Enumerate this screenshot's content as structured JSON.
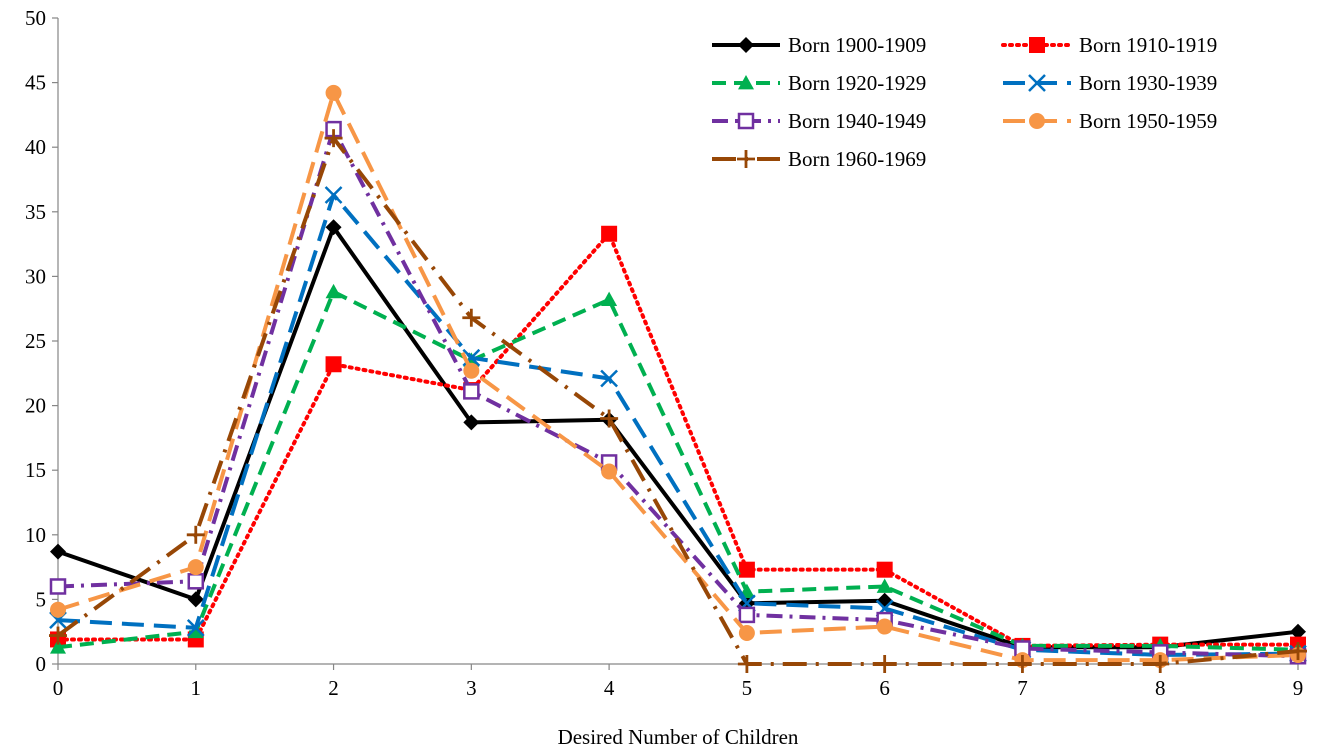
{
  "chart_data": {
    "type": "line",
    "title": "",
    "xlabel": "Desired Number of Children",
    "ylabel": "",
    "x": [
      0,
      1,
      2,
      3,
      4,
      5,
      6,
      7,
      8,
      9
    ],
    "x_tick_labels": [
      "0",
      "1",
      "2",
      "3",
      "4",
      "5",
      "6",
      "7",
      "8",
      "9"
    ],
    "ylim": [
      0,
      50
    ],
    "y_ticks": [
      0,
      5,
      10,
      15,
      20,
      25,
      30,
      35,
      40,
      45,
      50
    ],
    "y_tick_labels": [
      "0",
      "5",
      "10",
      "15",
      "20",
      "25",
      "30",
      "35",
      "40",
      "45",
      "50"
    ],
    "grid": false,
    "legend_position": "top-right",
    "series": [
      {
        "name": "Born 1900-1909",
        "color": "#000000",
        "marker": "diamond",
        "dash": "solid",
        "values": [
          8.7,
          5.0,
          33.8,
          18.7,
          18.9,
          4.7,
          4.9,
          1.3,
          1.3,
          2.5
        ]
      },
      {
        "name": "Born 1910-1919",
        "color": "#ff0000",
        "marker": "square",
        "dash": "dot",
        "values": [
          1.9,
          1.9,
          23.2,
          21.2,
          33.3,
          7.3,
          7.3,
          1.4,
          1.5,
          1.5
        ]
      },
      {
        "name": "Born 1920-1929",
        "color": "#00b050",
        "marker": "triangle",
        "dash": "dash",
        "values": [
          1.3,
          2.5,
          28.8,
          23.5,
          28.2,
          5.6,
          6.0,
          1.4,
          1.4,
          1.1
        ]
      },
      {
        "name": "Born 1930-1939",
        "color": "#0070c0",
        "marker": "x",
        "dash": "longdash",
        "values": [
          3.4,
          2.8,
          36.3,
          23.7,
          22.1,
          4.7,
          4.3,
          1.1,
          0.7,
          0.8
        ]
      },
      {
        "name": "Born 1940-1949",
        "color": "#7030a0",
        "marker": "open-square",
        "dash": "dashdot",
        "values": [
          6.0,
          6.4,
          41.4,
          21.1,
          15.6,
          3.8,
          3.4,
          1.2,
          0.9,
          0.6
        ]
      },
      {
        "name": "Born 1950-1959",
        "color": "#f79646",
        "marker": "circle",
        "dash": "longdash",
        "values": [
          4.2,
          7.5,
          44.2,
          22.7,
          14.9,
          2.4,
          2.9,
          0.3,
          0.3,
          0.7
        ]
      },
      {
        "name": "Born 1960-1969",
        "color": "#974706",
        "marker": "plus",
        "dash": "longdashdot",
        "values": [
          2.2,
          10.0,
          40.7,
          26.8,
          19.0,
          0.0,
          0.0,
          0.0,
          0.0,
          1.0
        ]
      }
    ]
  }
}
